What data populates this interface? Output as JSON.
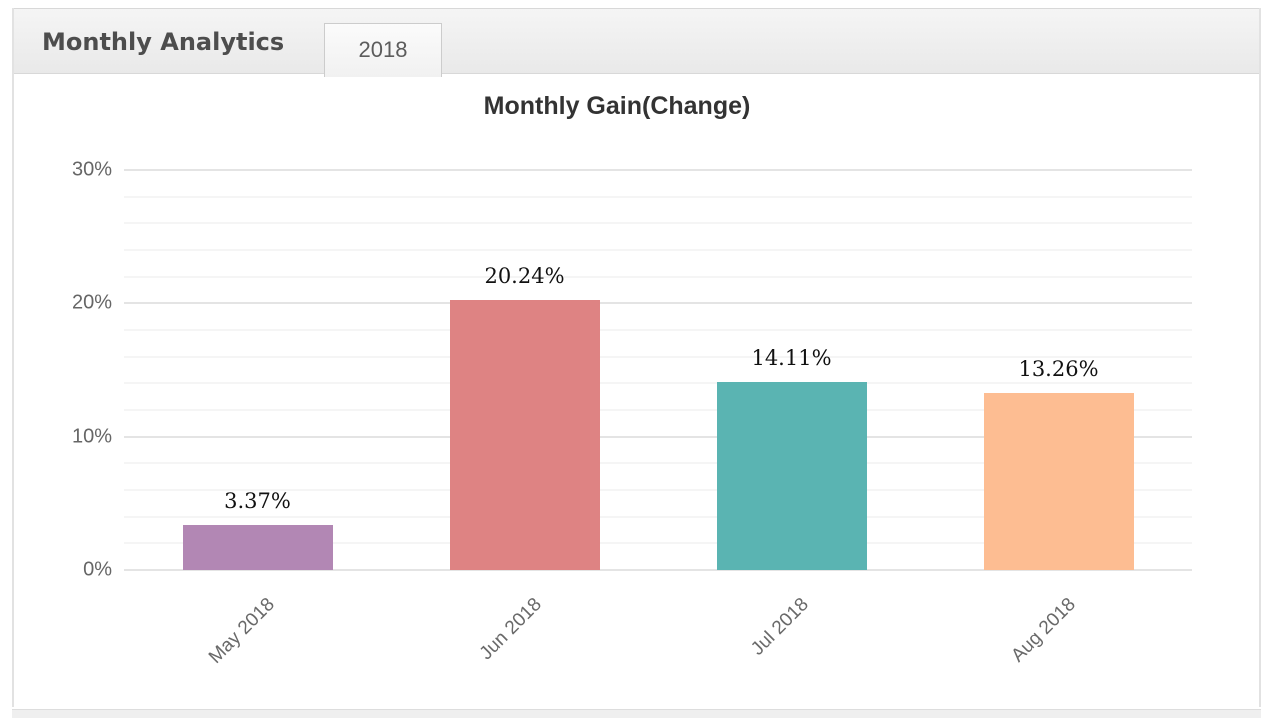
{
  "panel": {
    "title": "Monthly Analytics",
    "tab_label": "2018"
  },
  "chart_data": {
    "type": "bar",
    "title": "Monthly Gain(Change)",
    "categories": [
      "May 2018",
      "Jun 2018",
      "Jul 2018",
      "Aug 2018"
    ],
    "values": [
      3.37,
      20.24,
      14.11,
      13.26
    ],
    "value_labels": [
      "3.37%",
      "20.24%",
      "14.11%",
      "13.26%"
    ],
    "bar_colors": [
      "#b287b4",
      "#de8383",
      "#5ab4b2",
      "#fdbd92"
    ],
    "xlabel": "",
    "ylabel": "",
    "ylim": [
      0,
      30
    ],
    "ytick_values": [
      0,
      10,
      20,
      30
    ],
    "ytick_labels": [
      "0%",
      "10%",
      "20%",
      "30%"
    ],
    "minor_gridline_step": 2,
    "grid": "horizontal",
    "legend": "none"
  },
  "colors": {
    "header_bg": "#ededed",
    "panel_border": "#e2e2e2",
    "major_gridline": "#e4e4e4",
    "minor_gridline": "#f5f5f5",
    "axis_text": "#666666",
    "value_text": "#111111",
    "title_text": "#333333"
  }
}
